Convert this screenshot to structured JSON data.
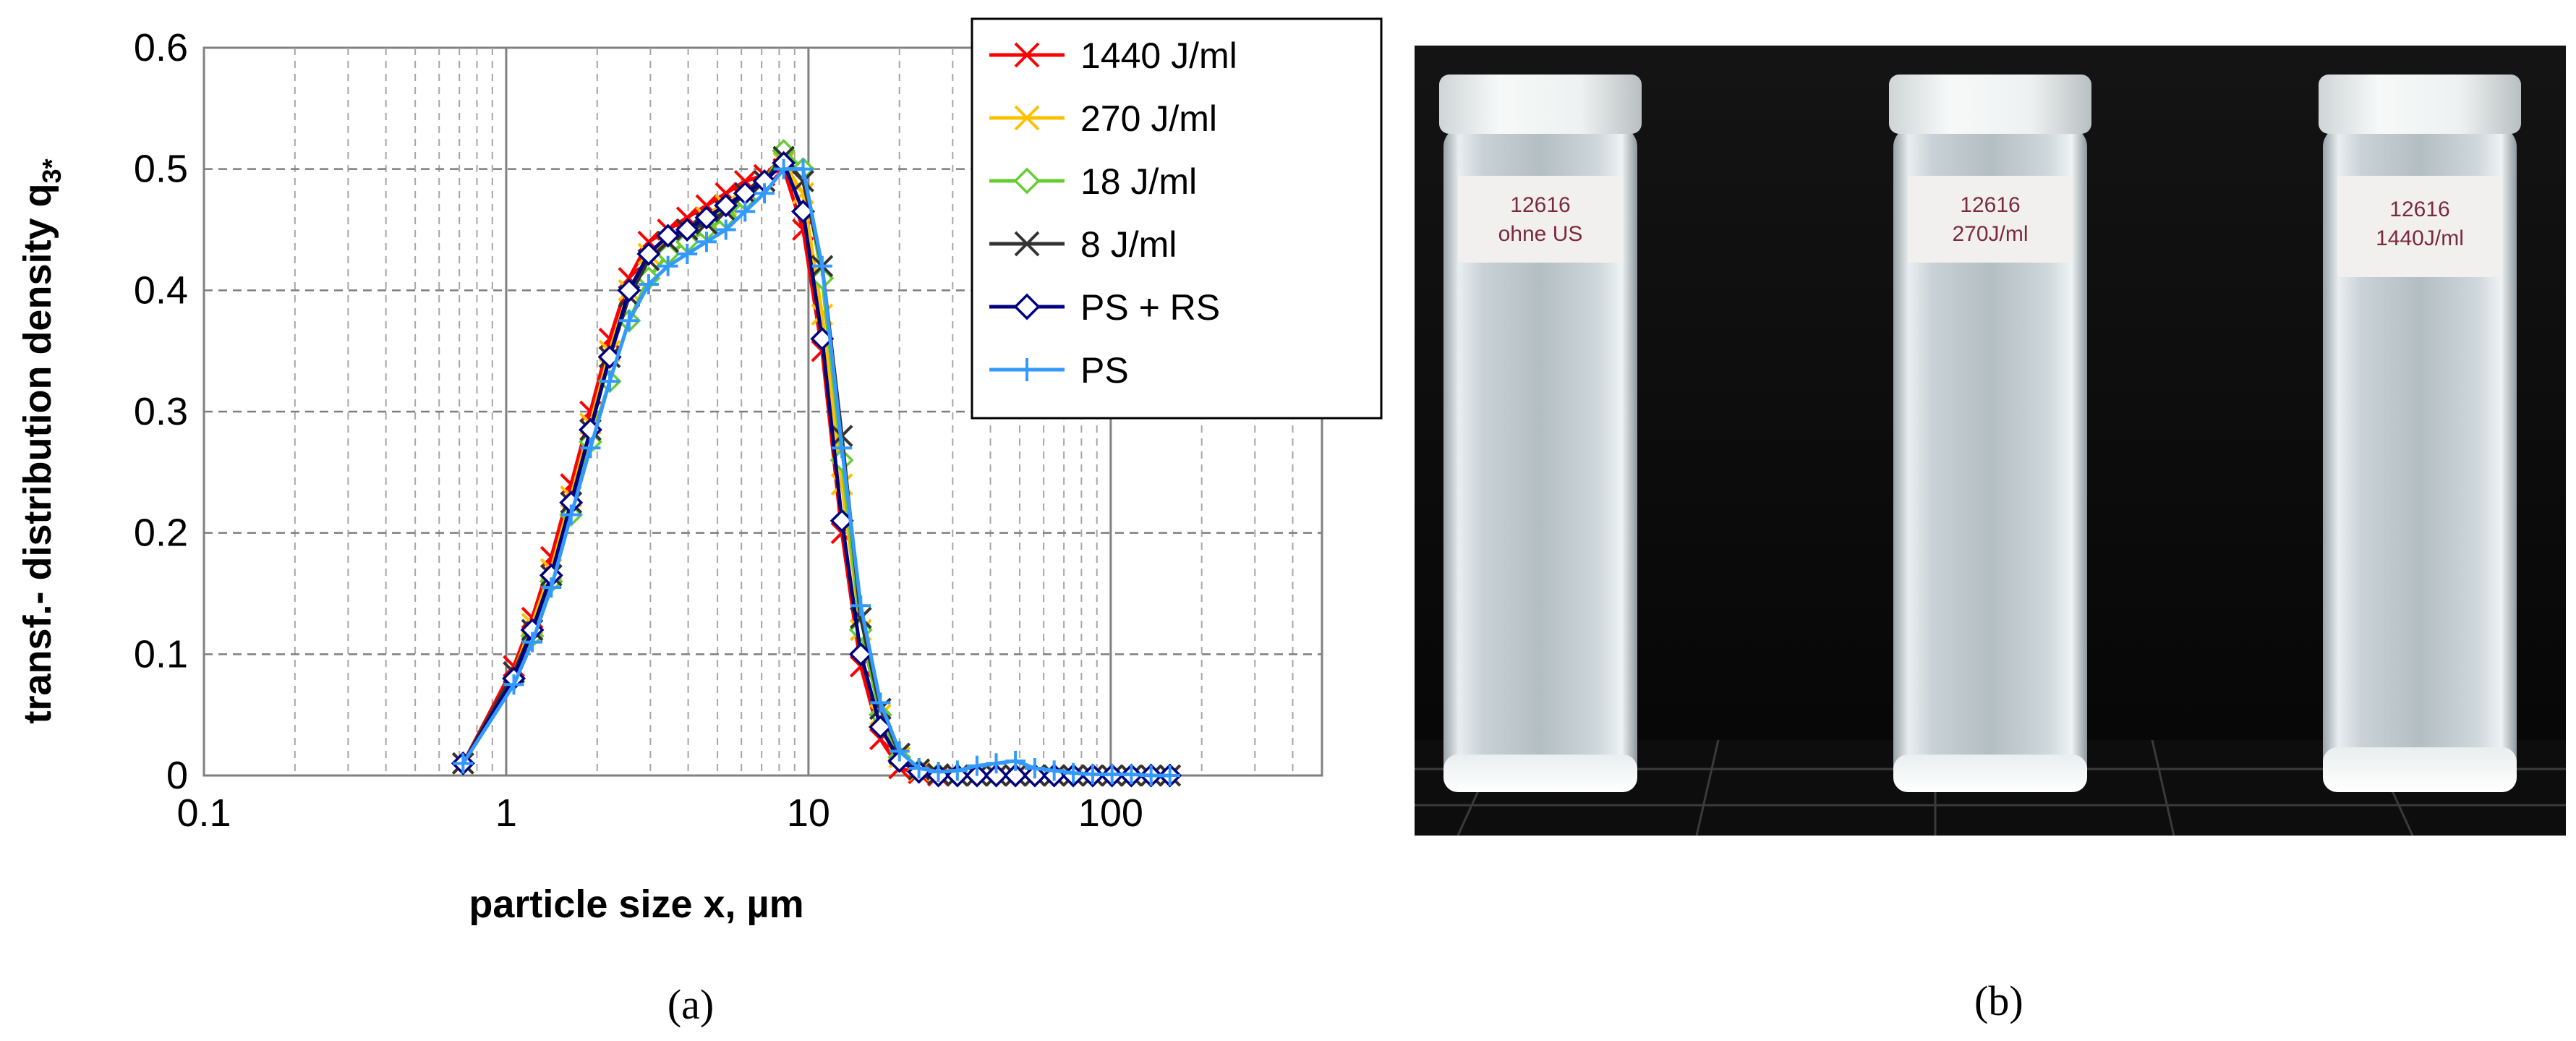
{
  "panel_a": {
    "label": "(a)",
    "chart_data": {
      "type": "line",
      "xscale": "log",
      "xlim": [
        0.1,
        500
      ],
      "ylim": [
        0,
        0.6
      ],
      "xticks": [
        0.1,
        1,
        10,
        100
      ],
      "xtick_labels": [
        "0.1",
        "1",
        "10",
        "100"
      ],
      "yticks": [
        0,
        0.1,
        0.2,
        0.3,
        0.4,
        0.5,
        0.6
      ],
      "ytick_labels": [
        "0",
        "0.1",
        "0.2",
        "0.3",
        "0.4",
        "0.5",
        "0.6"
      ],
      "xlabel": "particle size x, µm",
      "ylabel": "transf.- distribution density q",
      "ylabel_sub": "3*",
      "grid": true,
      "legend_position": "top-right",
      "x": [
        0.72,
        1.06,
        1.22,
        1.41,
        1.64,
        1.9,
        2.2,
        2.55,
        2.96,
        3.43,
        3.97,
        4.6,
        5.33,
        6.17,
        7.15,
        8.28,
        9.6,
        11.1,
        12.9,
        14.9,
        17.3,
        20.0,
        23.2,
        26.9,
        31.1,
        36.1,
        41.8,
        48.4,
        56.1,
        65.0,
        75.2,
        87.2,
        101,
        117,
        136,
        157
      ],
      "series": [
        {
          "name": "1440 J/ml",
          "color": "#ff0000",
          "marker": "x",
          "values": [
            0.01,
            0.09,
            0.13,
            0.18,
            0.24,
            0.3,
            0.36,
            0.41,
            0.44,
            0.45,
            0.46,
            0.47,
            0.48,
            0.49,
            0.495,
            0.5,
            0.45,
            0.35,
            0.2,
            0.09,
            0.03,
            0.006,
            0.002,
            0,
            0,
            0,
            0,
            0,
            0,
            0,
            0,
            0,
            0,
            0,
            0,
            0
          ]
        },
        {
          "name": "270 J/ml",
          "color": "#ffc000",
          "marker": "x",
          "values": [
            0.01,
            0.085,
            0.125,
            0.17,
            0.23,
            0.29,
            0.35,
            0.4,
            0.43,
            0.44,
            0.45,
            0.46,
            0.47,
            0.48,
            0.49,
            0.505,
            0.48,
            0.38,
            0.24,
            0.12,
            0.05,
            0.015,
            0.004,
            0.001,
            0,
            0,
            0,
            0,
            0,
            0,
            0,
            0,
            0,
            0,
            0,
            0
          ]
        },
        {
          "name": "18 J/ml",
          "color": "#66cc33",
          "marker": "diamond",
          "values": [
            0.01,
            0.08,
            0.115,
            0.16,
            0.215,
            0.275,
            0.325,
            0.375,
            0.41,
            0.43,
            0.44,
            0.45,
            0.46,
            0.475,
            0.49,
            0.515,
            0.5,
            0.41,
            0.26,
            0.12,
            0.05,
            0.015,
            0.004,
            0.001,
            0,
            0,
            0,
            0,
            0,
            0,
            0,
            0,
            0,
            0,
            0,
            0
          ]
        },
        {
          "name": "8 J/ml",
          "color": "#333333",
          "marker": "x",
          "values": [
            0.01,
            0.085,
            0.12,
            0.165,
            0.225,
            0.285,
            0.345,
            0.395,
            0.425,
            0.44,
            0.45,
            0.455,
            0.465,
            0.48,
            0.49,
            0.51,
            0.49,
            0.42,
            0.28,
            0.13,
            0.055,
            0.018,
            0.005,
            0.001,
            0,
            0,
            0,
            0,
            0,
            0,
            0,
            0,
            0,
            0,
            0,
            0
          ]
        },
        {
          "name": "PS + RS",
          "color": "#000080",
          "marker": "diamond-open",
          "values": [
            0.01,
            0.08,
            0.12,
            0.165,
            0.225,
            0.285,
            0.345,
            0.4,
            0.43,
            0.445,
            0.45,
            0.46,
            0.47,
            0.48,
            0.49,
            0.505,
            0.465,
            0.36,
            0.21,
            0.1,
            0.04,
            0.012,
            0.003,
            0,
            0,
            0,
            0,
            0,
            0,
            0,
            0,
            0,
            0,
            0,
            0,
            0
          ]
        },
        {
          "name": "PS",
          "color": "#3399ff",
          "marker": "plus",
          "values": [
            0.01,
            0.075,
            0.11,
            0.155,
            0.215,
            0.27,
            0.325,
            0.375,
            0.405,
            0.42,
            0.43,
            0.44,
            0.45,
            0.465,
            0.48,
            0.5,
            0.5,
            0.42,
            0.27,
            0.14,
            0.06,
            0.02,
            0.006,
            0.003,
            0.004,
            0.008,
            0.01,
            0.012,
            0.006,
            0.004,
            0.002,
            0.001,
            0.001,
            0.001,
            0,
            0
          ]
        }
      ]
    }
  },
  "panel_b": {
    "label": "(b)",
    "vials": [
      {
        "line1": "12616",
        "line2": "ohne US"
      },
      {
        "line1": "12616",
        "line2": "270J/ml"
      },
      {
        "line1": "12616",
        "line2": "1440J/ml"
      }
    ]
  }
}
